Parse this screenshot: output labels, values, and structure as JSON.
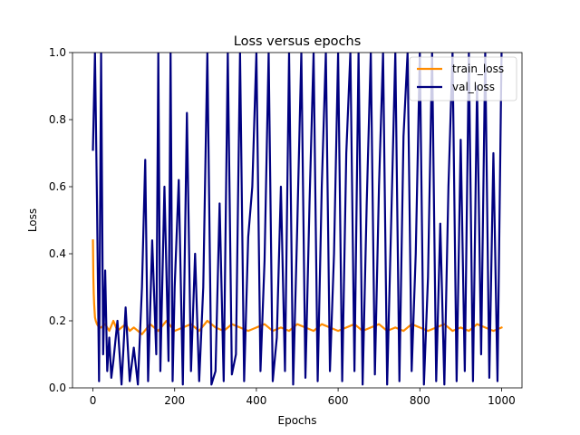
{
  "chart_data": {
    "type": "line",
    "title": "Loss versus epochs",
    "xlabel": "Epochs",
    "ylabel": "Loss",
    "xlim": [
      -50,
      1050
    ],
    "ylim": [
      0.0,
      1.0
    ],
    "xticks": [
      0,
      200,
      400,
      600,
      800,
      1000
    ],
    "yticks": [
      0.0,
      0.2,
      0.4,
      0.6,
      0.8,
      1.0
    ],
    "xtick_labels": [
      "0",
      "200",
      "400",
      "600",
      "800",
      "1000"
    ],
    "ytick_labels": [
      "0.0",
      "0.2",
      "0.4",
      "0.6",
      "0.8",
      "1.0"
    ],
    "legend_position": "top-right",
    "series": [
      {
        "name": "train_loss",
        "color": "#ff8c00",
        "x": [
          0,
          1,
          2,
          3,
          4,
          5,
          7,
          10,
          15,
          20,
          30,
          40,
          50,
          60,
          70,
          80,
          90,
          100,
          120,
          140,
          160,
          180,
          200,
          220,
          240,
          260,
          280,
          300,
          320,
          340,
          360,
          380,
          400,
          420,
          440,
          460,
          480,
          500,
          520,
          540,
          560,
          580,
          600,
          620,
          640,
          660,
          680,
          700,
          720,
          740,
          760,
          780,
          800,
          820,
          840,
          860,
          880,
          900,
          920,
          940,
          960,
          980,
          1000
        ],
        "y": [
          0.44,
          0.33,
          0.28,
          0.25,
          0.23,
          0.21,
          0.2,
          0.19,
          0.18,
          0.18,
          0.19,
          0.17,
          0.2,
          0.17,
          0.18,
          0.19,
          0.17,
          0.18,
          0.16,
          0.19,
          0.17,
          0.2,
          0.17,
          0.18,
          0.19,
          0.17,
          0.2,
          0.18,
          0.17,
          0.19,
          0.18,
          0.17,
          0.18,
          0.19,
          0.17,
          0.18,
          0.17,
          0.19,
          0.18,
          0.17,
          0.19,
          0.18,
          0.17,
          0.18,
          0.19,
          0.17,
          0.18,
          0.19,
          0.17,
          0.18,
          0.17,
          0.19,
          0.18,
          0.17,
          0.18,
          0.19,
          0.17,
          0.18,
          0.17,
          0.19,
          0.18,
          0.17,
          0.18
        ]
      },
      {
        "name": "val_loss",
        "color": "#000080",
        "x": [
          0,
          5,
          10,
          15,
          20,
          25,
          30,
          35,
          40,
          45,
          50,
          60,
          70,
          80,
          90,
          100,
          110,
          120,
          128,
          135,
          145,
          155,
          160,
          165,
          175,
          185,
          190,
          195,
          200,
          210,
          220,
          230,
          240,
          250,
          260,
          270,
          280,
          290,
          300,
          310,
          320,
          330,
          340,
          350,
          360,
          370,
          380,
          390,
          400,
          410,
          420,
          430,
          440,
          450,
          460,
          470,
          480,
          490,
          500,
          510,
          520,
          530,
          540,
          550,
          560,
          570,
          580,
          590,
          600,
          610,
          620,
          630,
          640,
          650,
          660,
          670,
          680,
          690,
          700,
          710,
          720,
          730,
          740,
          750,
          760,
          770,
          780,
          790,
          800,
          810,
          820,
          830,
          840,
          850,
          860,
          870,
          880,
          890,
          900,
          910,
          920,
          930,
          940,
          950,
          960,
          970,
          980,
          990,
          1000
        ],
        "y": [
          0.71,
          1.0,
          0.55,
          0.02,
          1.0,
          0.1,
          0.35,
          0.05,
          0.15,
          0.03,
          0.08,
          0.2,
          0.01,
          0.24,
          0.02,
          0.12,
          0.01,
          0.3,
          0.68,
          0.02,
          0.44,
          0.1,
          1.0,
          0.05,
          0.6,
          0.08,
          1.0,
          0.02,
          0.3,
          0.62,
          0.01,
          0.82,
          0.05,
          0.4,
          0.02,
          0.3,
          1.0,
          0.01,
          0.05,
          0.55,
          0.02,
          1.0,
          0.04,
          0.1,
          1.0,
          0.02,
          0.45,
          0.6,
          1.0,
          0.05,
          0.38,
          1.0,
          0.02,
          0.15,
          0.6,
          0.05,
          1.0,
          0.01,
          0.48,
          1.0,
          0.03,
          0.55,
          1.0,
          0.02,
          0.6,
          1.0,
          0.05,
          0.4,
          1.0,
          0.02,
          0.7,
          1.0,
          0.05,
          1.0,
          0.01,
          0.55,
          1.0,
          0.04,
          0.6,
          1.0,
          0.01,
          0.5,
          1.0,
          0.02,
          0.75,
          1.0,
          0.05,
          0.4,
          1.0,
          0.01,
          0.33,
          1.0,
          0.02,
          0.49,
          0.01,
          0.6,
          1.0,
          0.02,
          0.74,
          0.05,
          1.0,
          0.02,
          0.9,
          0.1,
          1.0,
          0.03,
          0.7,
          0.02,
          1.0
        ]
      }
    ]
  }
}
